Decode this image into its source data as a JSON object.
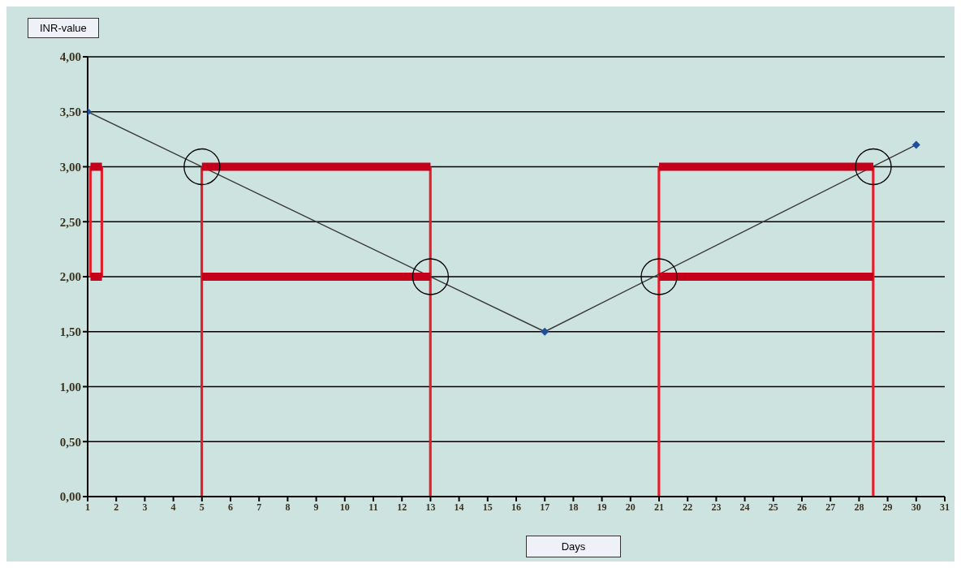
{
  "chart_data": {
    "type": "line",
    "xlabel": "Days",
    "ylabel": "INR-value",
    "xlim": [
      1,
      31
    ],
    "xticks": [
      1,
      2,
      3,
      4,
      5,
      6,
      7,
      8,
      9,
      10,
      11,
      12,
      13,
      14,
      15,
      16,
      17,
      18,
      19,
      20,
      21,
      22,
      23,
      24,
      25,
      26,
      27,
      28,
      29,
      30,
      31
    ],
    "ylim": [
      0,
      4
    ],
    "yticks": [
      {
        "value": 0,
        "label": "0,00"
      },
      {
        "value": 0.5,
        "label": "0,50"
      },
      {
        "value": 1,
        "label": "1,00"
      },
      {
        "value": 1.5,
        "label": "1,50"
      },
      {
        "value": 2,
        "label": "2,00"
      },
      {
        "value": 2.5,
        "label": "2,50"
      },
      {
        "value": 3,
        "label": "3,00"
      },
      {
        "value": 3.5,
        "label": "3,50"
      },
      {
        "value": 4,
        "label": "4,00"
      }
    ],
    "grid": "y",
    "series": [
      {
        "color": "#3a3a3a",
        "x": [
          1,
          17,
          30
        ],
        "values": [
          3.5,
          1.5,
          3.2
        ],
        "marker": "none"
      },
      {
        "type": "scatter",
        "color": "#1f4e9c",
        "x": [
          1,
          17,
          30
        ],
        "values": [
          3.5,
          1.5,
          3.2
        ],
        "marker": "diamond"
      },
      {
        "type": "bar",
        "color": "#e0202c",
        "x": [
          1.1,
          1.5,
          5,
          13,
          21,
          28.5
        ],
        "base": [
          2,
          2,
          0,
          0,
          0,
          0
        ],
        "values": [
          1,
          1,
          3,
          3,
          3,
          3
        ]
      },
      {
        "color": "#c4001a",
        "x": [
          1.1,
          1.5
        ],
        "values": [
          3,
          3
        ],
        "marker": "none"
      },
      {
        "color": "#c4001a",
        "x": [
          1.1,
          1.5
        ],
        "values": [
          2,
          2
        ],
        "marker": "none"
      },
      {
        "color": "#c4001a",
        "x": [
          5,
          13
        ],
        "values": [
          3,
          3
        ],
        "marker": "none"
      },
      {
        "color": "#c4001a",
        "x": [
          5,
          13
        ],
        "values": [
          2,
          2
        ],
        "marker": "none"
      },
      {
        "color": "#c4001a",
        "x": [
          21,
          28.5
        ],
        "values": [
          3,
          3
        ],
        "marker": "none"
      },
      {
        "color": "#c4001a",
        "x": [
          21,
          28.5
        ],
        "values": [
          2,
          2
        ],
        "marker": "none"
      },
      {
        "type": "scatter",
        "color": "#000000",
        "x": [
          5,
          13,
          21,
          28.5
        ],
        "values": [
          3,
          2,
          2,
          3
        ],
        "marker": "circle"
      }
    ]
  }
}
